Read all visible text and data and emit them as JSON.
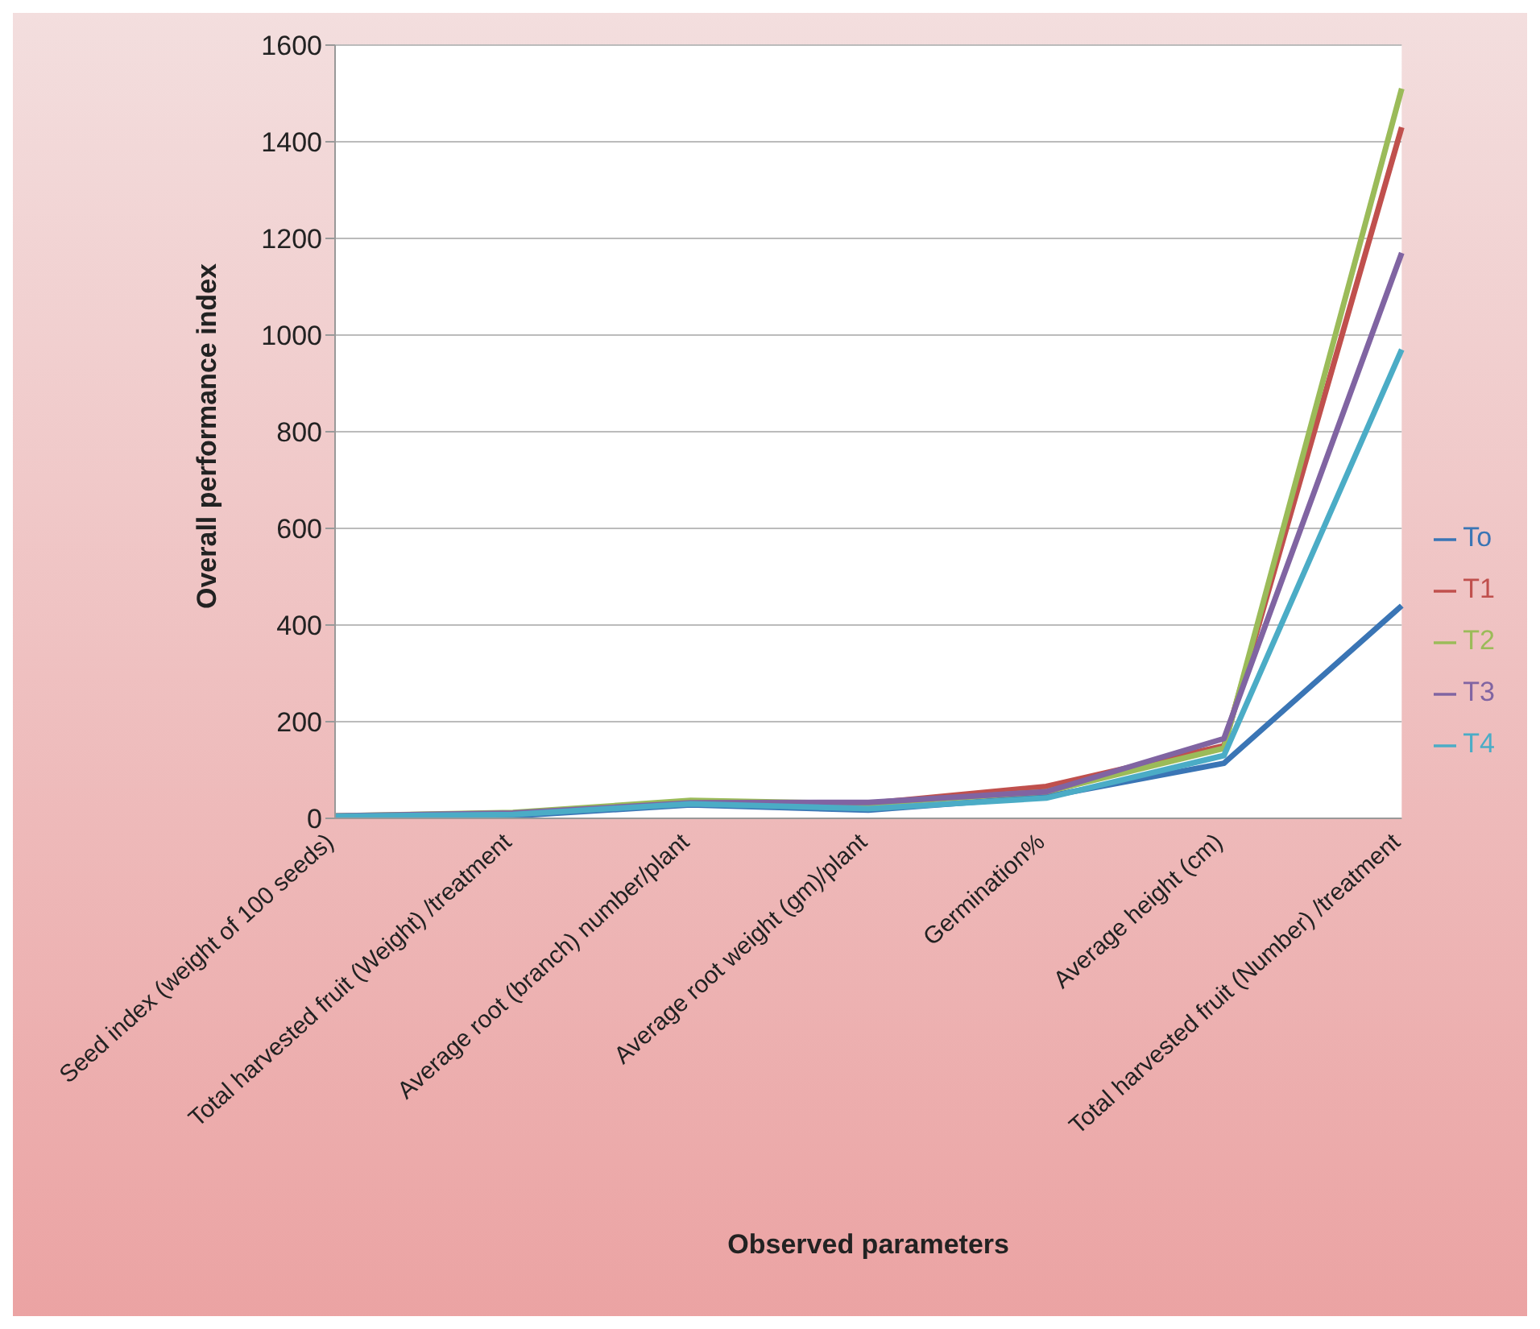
{
  "chart_data": {
    "type": "line",
    "xlabel": "Observed parameters",
    "ylabel": "Overall performance index",
    "categories": [
      "Seed index (weight of 100 seeds)",
      "Total harvested fruit (Weight) /treatment",
      "Average root (branch) number/plant",
      "Average root weight (gm)/plant",
      "Germination%",
      "Average height (cm)",
      "Total harvested fruit (Number) /treatment"
    ],
    "series": [
      {
        "name": "To",
        "color": "#3a75b5",
        "values": [
          4,
          5,
          28,
          17,
          45,
          114,
          440
        ]
      },
      {
        "name": "T1",
        "color": "#c0504d",
        "values": [
          null,
          null,
          32,
          31,
          66,
          150,
          1430
        ]
      },
      {
        "name": "T2",
        "color": "#9bbb59",
        "values": [
          5,
          12,
          37,
          30,
          55,
          145,
          1510
        ]
      },
      {
        "name": "T3",
        "color": "#8064a2",
        "values": [
          5,
          11,
          32,
          33,
          55,
          165,
          1170
        ]
      },
      {
        "name": "T4",
        "color": "#4bacc6",
        "values": [
          4,
          8,
          30,
          20,
          42,
          130,
          970
        ]
      }
    ],
    "ylim": [
      0,
      1600
    ],
    "yticks": [
      0,
      200,
      400,
      600,
      800,
      1000,
      1200,
      1400,
      1600
    ],
    "grid": "y",
    "legend": "right",
    "marker": "none"
  }
}
